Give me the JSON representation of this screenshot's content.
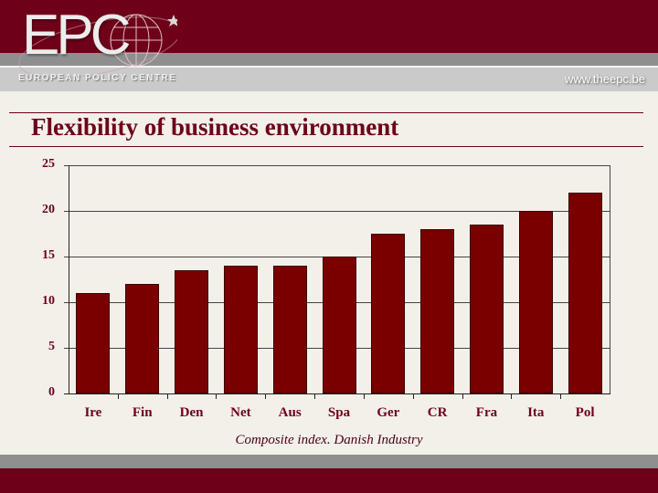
{
  "header": {
    "logo_text": "EPC",
    "logo_subtitle": "EUROPEAN POLICY CENTRE",
    "website": "www.theepc.be"
  },
  "slide": {
    "title": "Flexibility of business environment",
    "caption": "Composite index. Danish Industry"
  },
  "colors": {
    "brand_maroon": "#6e0019",
    "bar_fill": "#7a0000",
    "background": "#f3f0e9"
  },
  "chart_data": {
    "type": "bar",
    "title": "Flexibility of business environment",
    "subtitle": "Composite index. Danish Industry",
    "categories": [
      "Ire",
      "Fin",
      "Den",
      "Net",
      "Aus",
      "Spa",
      "Ger",
      "CR",
      "Fra",
      "Ita",
      "Pol"
    ],
    "values": [
      11,
      12,
      13.5,
      14,
      14,
      15,
      17.5,
      18,
      18.5,
      20,
      22
    ],
    "xlabel": "",
    "ylabel": "",
    "ylim": [
      0,
      25
    ],
    "yticks": [
      0,
      5,
      10,
      15,
      20,
      25
    ],
    "grid": true,
    "legend": null
  }
}
